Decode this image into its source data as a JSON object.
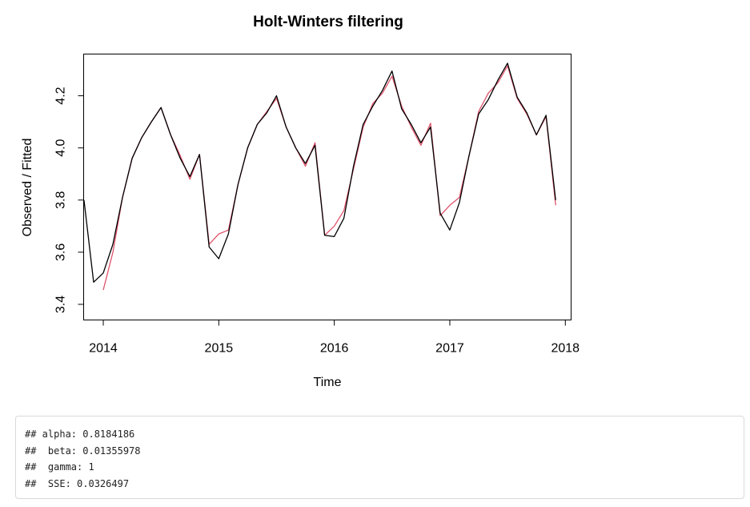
{
  "chart_data": {
    "type": "line",
    "title": "Holt-Winters filtering",
    "xlabel": "Time",
    "ylabel": "Observed / Fitted",
    "xlim": [
      2013.83,
      2018.05
    ],
    "ylim": [
      3.34,
      4.36
    ],
    "x_ticks": [
      "2014",
      "2015",
      "2016",
      "2017",
      "2018"
    ],
    "y_ticks": [
      "3.4",
      "3.6",
      "3.8",
      "4.0",
      "4.2"
    ],
    "grid": false,
    "legend": "none",
    "series": [
      {
        "color": "#000000",
        "start": 2013.833,
        "step": 0.08333,
        "values": [
          3.8,
          3.485,
          3.52,
          3.63,
          3.81,
          3.96,
          4.04,
          4.1,
          4.155,
          4.05,
          3.96,
          3.89,
          3.975,
          3.62,
          3.575,
          3.67,
          3.86,
          4.0,
          4.09,
          4.135,
          4.2,
          4.08,
          4.0,
          3.94,
          4.01,
          3.665,
          3.66,
          3.73,
          3.93,
          4.09,
          4.16,
          4.22,
          4.295,
          4.15,
          4.09,
          4.02,
          4.08,
          3.75,
          3.685,
          3.79,
          3.97,
          4.13,
          4.185,
          4.26,
          4.325,
          4.195,
          4.135,
          4.05,
          4.125,
          3.8
        ]
      },
      {
        "color": "#df536b",
        "start": 2014.0,
        "step": 0.08333,
        "values": [
          3.455,
          3.6,
          3.81,
          3.96,
          4.04,
          4.1,
          4.155,
          4.05,
          3.97,
          3.88,
          3.975,
          3.63,
          3.67,
          3.685,
          3.86,
          4.0,
          4.09,
          4.14,
          4.19,
          4.08,
          4.0,
          3.93,
          4.02,
          3.665,
          3.7,
          3.76,
          3.92,
          4.08,
          4.17,
          4.21,
          4.275,
          4.16,
          4.08,
          4.01,
          4.095,
          3.74,
          3.78,
          3.81,
          3.97,
          4.14,
          4.21,
          4.25,
          4.315,
          4.19,
          4.13,
          4.05,
          4.12,
          3.78
        ]
      }
    ]
  },
  "output": {
    "lines": [
      "## alpha: 0.8184186",
      "##  beta: 0.01355978",
      "##  gamma: 1",
      "##  SSE: 0.0326497"
    ]
  }
}
